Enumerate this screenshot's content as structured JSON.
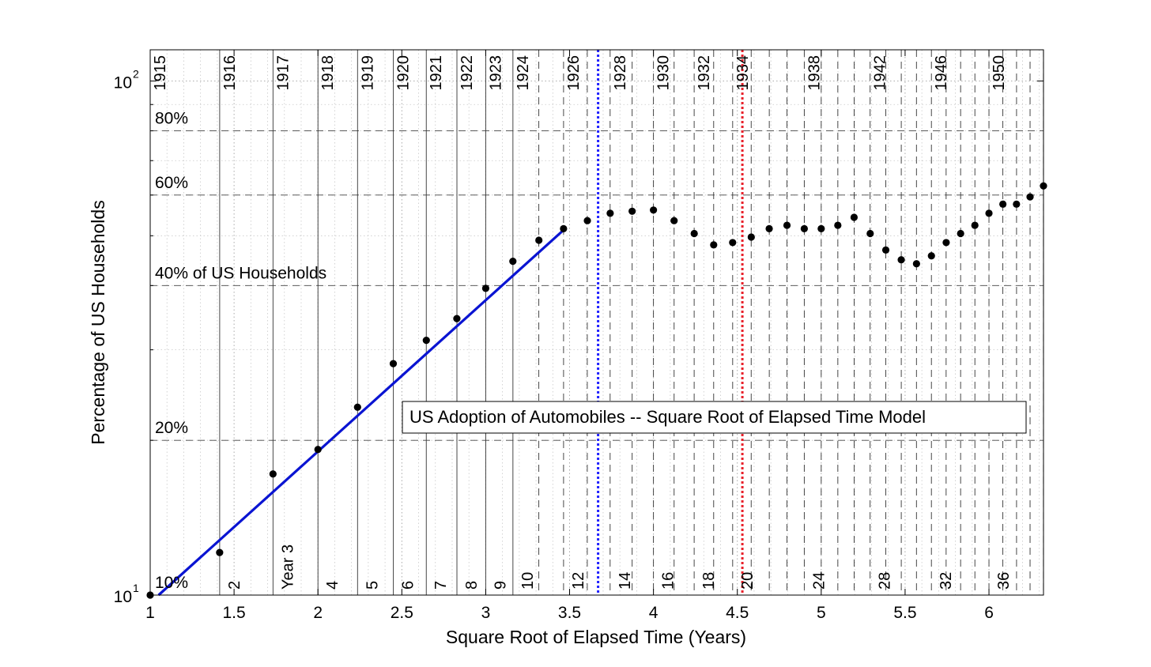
{
  "chart_data": {
    "type": "scatter",
    "title": "US Adoption of Automobiles -- Square Root of Elapsed Time Model",
    "xlabel": "Square Root of Elapsed Time (Years)",
    "ylabel": "Percentage of US Households",
    "xlim": [
      1,
      6.325
    ],
    "ylim": [
      10,
      115
    ],
    "yscale": "log",
    "x_ticks": [
      1,
      1.5,
      2,
      2.5,
      3,
      3.5,
      4,
      4.5,
      5,
      5.5,
      6
    ],
    "x_tick_labels": [
      "1",
      "1.5",
      "2",
      "2.5",
      "3",
      "3.5",
      "4",
      "4.5",
      "5",
      "5.5",
      "6"
    ],
    "y_ticks": [
      {
        "value": 10,
        "base": "10",
        "exp": "1"
      },
      {
        "value": 100,
        "base": "10",
        "exp": "2"
      }
    ],
    "grid": true,
    "year_lines": [
      {
        "t": 1,
        "label": "1915"
      },
      {
        "t": 2,
        "label": "1916"
      },
      {
        "t": 3,
        "label": "1917"
      },
      {
        "t": 4,
        "label": "1918"
      },
      {
        "t": 5,
        "label": "1919"
      },
      {
        "t": 6,
        "label": "1920"
      },
      {
        "t": 7,
        "label": "1921"
      },
      {
        "t": 8,
        "label": "1922"
      },
      {
        "t": 9,
        "label": "1923"
      },
      {
        "t": 10,
        "label": "1924"
      },
      {
        "t": 12,
        "label": "1926"
      },
      {
        "t": 14,
        "label": "1928"
      },
      {
        "t": 16,
        "label": "1930"
      },
      {
        "t": 18,
        "label": "1932"
      },
      {
        "t": 20,
        "label": "1934"
      },
      {
        "t": 24,
        "label": "1938"
      },
      {
        "t": 28,
        "label": "1942"
      },
      {
        "t": 32,
        "label": "1946"
      },
      {
        "t": 36,
        "label": "1950"
      }
    ],
    "elapsed_labels": [
      {
        "t": 2,
        "label": "2"
      },
      {
        "t": 3,
        "label": "Year 3"
      },
      {
        "t": 4,
        "label": "4"
      },
      {
        "t": 5,
        "label": "5"
      },
      {
        "t": 6,
        "label": "6"
      },
      {
        "t": 7,
        "label": "7"
      },
      {
        "t": 8,
        "label": "8"
      },
      {
        "t": 9,
        "label": "9"
      },
      {
        "t": 10,
        "label": "10"
      },
      {
        "t": 12,
        "label": "12"
      },
      {
        "t": 14,
        "label": "14"
      },
      {
        "t": 16,
        "label": "16"
      },
      {
        "t": 18,
        "label": "18"
      },
      {
        "t": 20,
        "label": "20"
      },
      {
        "t": 24,
        "label": "24"
      },
      {
        "t": 28,
        "label": "28"
      },
      {
        "t": 32,
        "label": "32"
      },
      {
        "t": 36,
        "label": "36"
      }
    ],
    "percent_labels": [
      {
        "value": 10,
        "label": "10%"
      },
      {
        "value": 20,
        "label": "20%"
      },
      {
        "value": 40,
        "label": "40% of US Households"
      },
      {
        "value": 60,
        "label": "60%"
      },
      {
        "value": 80,
        "label": "80%"
      }
    ],
    "blue_marker_x": 3.67,
    "red_marker_x": 4.53,
    "fit_line": {
      "x": [
        1.05,
        3.47
      ],
      "y": [
        10,
        51.5
      ]
    },
    "series": [
      {
        "x": [
          1.0,
          1.414,
          1.732,
          2.0,
          2.236,
          2.449,
          2.646,
          2.828,
          3.0,
          3.162,
          3.317,
          3.464,
          3.606,
          3.742,
          3.873,
          4.0,
          4.123,
          4.243,
          4.359,
          4.472,
          4.583,
          4.69,
          4.796,
          4.899,
          5.0,
          5.099,
          5.196,
          5.292,
          5.385,
          5.477,
          5.568,
          5.657,
          5.745,
          5.831,
          5.916,
          6.0,
          6.083,
          6.164,
          6.245,
          6.325
        ],
        "y": [
          10.0,
          12.1,
          17.2,
          19.2,
          23.2,
          28.2,
          31.3,
          34.5,
          39.5,
          44.6,
          49.0,
          51.6,
          53.5,
          55.3,
          55.8,
          56.1,
          53.5,
          50.5,
          48.0,
          48.5,
          49.7,
          51.6,
          52.4,
          51.6,
          51.6,
          52.4,
          54.3,
          50.5,
          46.9,
          44.9,
          44.1,
          45.7,
          48.5,
          50.5,
          52.4,
          55.3,
          57.6,
          57.6,
          59.5,
          62.5
        ]
      }
    ]
  }
}
